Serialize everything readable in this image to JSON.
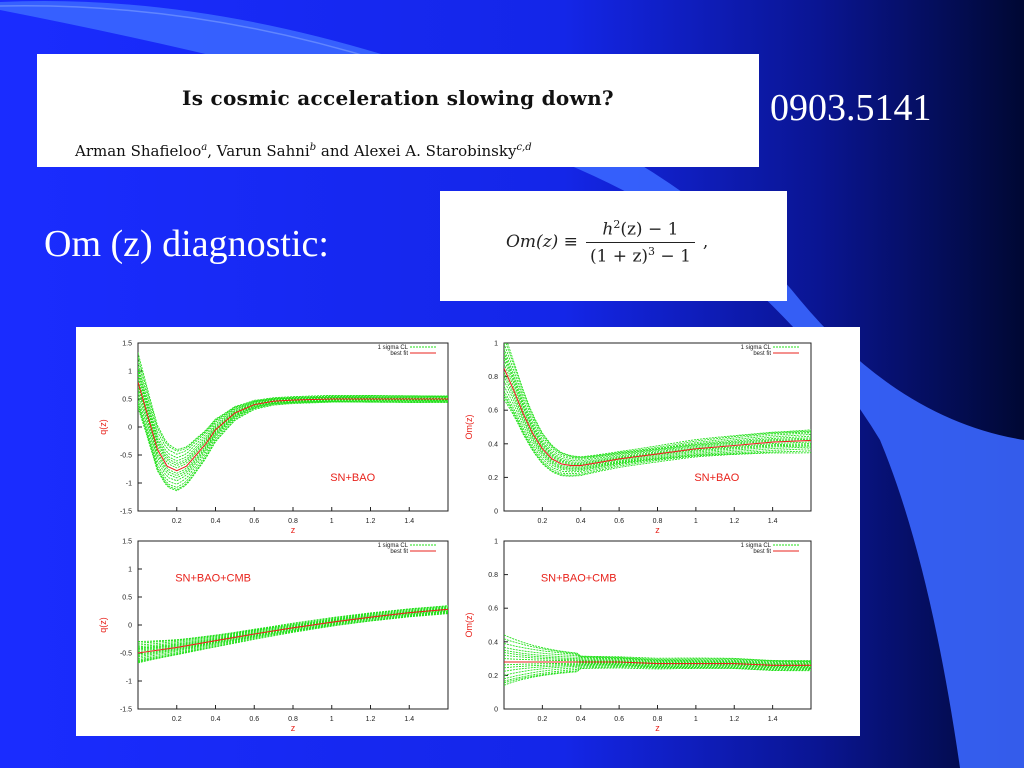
{
  "slide": {
    "paper_title": "Is cosmic acceleration slowing down?",
    "authors": [
      {
        "name": "Arman Shafieloo",
        "sup": "a",
        "sep": ", "
      },
      {
        "name": "Varun Sahni",
        "sup": "b",
        "sep": " and "
      },
      {
        "name": "Alexei A. Starobinsky",
        "sup": "c,d",
        "sep": ""
      }
    ],
    "arxiv_id": "0903.5141",
    "diagnostic_label": "Om (z) diagnostic:",
    "formula": {
      "lhs": "Om(z) ≡",
      "num_base": "h",
      "num_exp": "2",
      "num_rest": "(z) − 1",
      "den_base": "(1 + z)",
      "den_exp": "3",
      "den_rest": " − 1",
      "trail": ","
    },
    "colors": {
      "bg_top": "#1a2cff",
      "bg_dark": "#000833",
      "accent": "#3a66ff",
      "fit_red": "#e8231c",
      "cl_green": "#22e01a"
    }
  },
  "chart_data": [
    {
      "type": "line",
      "ylabel": "q(z)",
      "xlabel": "z",
      "xlim": [
        0,
        1.6
      ],
      "ylim": [
        -1.5,
        1.5
      ],
      "xticks": [
        "0.2",
        "0.4",
        "0.6",
        "0.8",
        "1",
        "1.2",
        "1.4"
      ],
      "yticks": [
        "1.5",
        "1",
        "0.5",
        "0",
        "-0.5",
        "-1",
        "-1.5"
      ],
      "annotation": "SN+BAO",
      "annotation_pos": "lower-right",
      "legend": [
        "1 sigma CL",
        "best fit"
      ],
      "series": [
        {
          "name": "best fit",
          "x": [
            0,
            0.05,
            0.1,
            0.15,
            0.2,
            0.25,
            0.3,
            0.35,
            0.4,
            0.5,
            0.6,
            0.7,
            0.8,
            1.0,
            1.2,
            1.4,
            1.6
          ],
          "y": [
            0.8,
            0.2,
            -0.4,
            -0.7,
            -0.78,
            -0.7,
            -0.5,
            -0.3,
            -0.05,
            0.25,
            0.4,
            0.46,
            0.48,
            0.5,
            0.5,
            0.5,
            0.5
          ]
        }
      ]
    },
    {
      "type": "line",
      "ylabel": "Om(z)",
      "xlabel": "z",
      "xlim": [
        0,
        1.6
      ],
      "ylim": [
        0,
        1
      ],
      "xticks": [
        "0.2",
        "0.4",
        "0.6",
        "0.8",
        "1",
        "1.2",
        "1.4"
      ],
      "yticks": [
        "1",
        "0.8",
        "0.6",
        "0.4",
        "0.2",
        "0"
      ],
      "annotation": "SN+BAO",
      "annotation_pos": "lower-right",
      "legend": [
        "1 sigma CL",
        "best fit"
      ],
      "series": [
        {
          "name": "best fit",
          "x": [
            0,
            0.05,
            0.1,
            0.15,
            0.2,
            0.25,
            0.3,
            0.35,
            0.4,
            0.5,
            0.6,
            0.8,
            1.0,
            1.2,
            1.4,
            1.6
          ],
          "y": [
            0.85,
            0.72,
            0.58,
            0.46,
            0.37,
            0.31,
            0.28,
            0.27,
            0.27,
            0.29,
            0.31,
            0.34,
            0.37,
            0.39,
            0.41,
            0.42
          ]
        }
      ]
    },
    {
      "type": "line",
      "ylabel": "q(z)",
      "xlabel": "z",
      "xlim": [
        0,
        1.6
      ],
      "ylim": [
        -1.5,
        1.5
      ],
      "xticks": [
        "0.2",
        "0.4",
        "0.6",
        "0.8",
        "1",
        "1.2",
        "1.4"
      ],
      "yticks": [
        "1.5",
        "1",
        "0.5",
        "0",
        "-0.5",
        "-1",
        "-1.5"
      ],
      "annotation": "SN+BAO+CMB",
      "annotation_pos": "upper-left",
      "legend": [
        "1 sigma CL",
        "best fit"
      ],
      "series": [
        {
          "name": "best fit",
          "x": [
            0,
            0.2,
            0.4,
            0.6,
            0.8,
            1.0,
            1.2,
            1.4,
            1.6
          ],
          "y": [
            -0.5,
            -0.4,
            -0.28,
            -0.16,
            -0.05,
            0.05,
            0.14,
            0.22,
            0.28
          ]
        }
      ]
    },
    {
      "type": "line",
      "ylabel": "Om(z)",
      "xlabel": "z",
      "xlim": [
        0,
        1.6
      ],
      "ylim": [
        0,
        1
      ],
      "xticks": [
        "0.2",
        "0.4",
        "0.6",
        "0.8",
        "1",
        "1.2",
        "1.4"
      ],
      "yticks": [
        "1",
        "0.8",
        "0.6",
        "0.4",
        "0.2",
        "0"
      ],
      "annotation": "SN+BAO+CMB",
      "annotation_pos": "upper-left",
      "legend": [
        "1 sigma CL",
        "best fit"
      ],
      "series": [
        {
          "name": "best fit",
          "x": [
            0,
            0.2,
            0.4,
            0.6,
            0.8,
            1.0,
            1.2,
            1.4,
            1.6
          ],
          "y": [
            0.28,
            0.28,
            0.28,
            0.28,
            0.27,
            0.27,
            0.27,
            0.26,
            0.26
          ]
        }
      ]
    }
  ]
}
